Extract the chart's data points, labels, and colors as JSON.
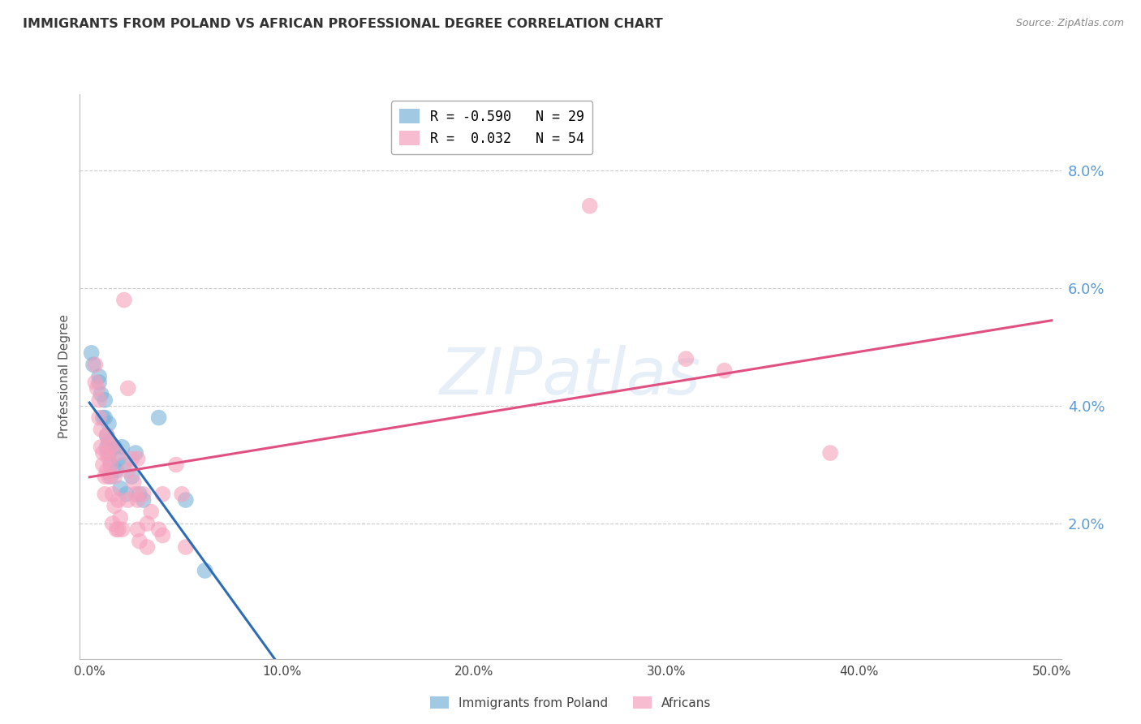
{
  "title": "IMMIGRANTS FROM POLAND VS AFRICAN PROFESSIONAL DEGREE CORRELATION CHART",
  "source": "Source: ZipAtlas.com",
  "ylabel": "Professional Degree",
  "right_ytick_labels": [
    "8.0%",
    "6.0%",
    "4.0%",
    "2.0%"
  ],
  "right_ytick_values": [
    0.08,
    0.06,
    0.04,
    0.02
  ],
  "bottom_xtick_labels": [
    "0.0%",
    "10.0%",
    "20.0%",
    "30.0%",
    "40.0%",
    "50.0%"
  ],
  "bottom_xtick_values": [
    0.0,
    0.1,
    0.2,
    0.3,
    0.4,
    0.5
  ],
  "xlim": [
    -0.005,
    0.505
  ],
  "ylim": [
    -0.003,
    0.093
  ],
  "legend_label_poland": "Immigrants from Poland",
  "legend_label_africans": "Africans",
  "poland_color": "#7ab3d9",
  "africa_color": "#f5a0bc",
  "watermark_text": "ZIPatlas",
  "background_color": "#ffffff",
  "grid_color": "#cccccc",
  "title_color": "#333333",
  "right_axis_label_color": "#5b9bd5",
  "poland_scatter": [
    [
      0.001,
      0.049
    ],
    [
      0.002,
      0.047
    ],
    [
      0.005,
      0.045
    ],
    [
      0.005,
      0.044
    ],
    [
      0.006,
      0.042
    ],
    [
      0.007,
      0.038
    ],
    [
      0.008,
      0.041
    ],
    [
      0.008,
      0.038
    ],
    [
      0.009,
      0.035
    ],
    [
      0.009,
      0.033
    ],
    [
      0.01,
      0.037
    ],
    [
      0.01,
      0.034
    ],
    [
      0.01,
      0.032
    ],
    [
      0.011,
      0.03
    ],
    [
      0.011,
      0.028
    ],
    [
      0.013,
      0.033
    ],
    [
      0.014,
      0.029
    ],
    [
      0.015,
      0.031
    ],
    [
      0.016,
      0.026
    ],
    [
      0.017,
      0.033
    ],
    [
      0.018,
      0.03
    ],
    [
      0.019,
      0.025
    ],
    [
      0.022,
      0.028
    ],
    [
      0.024,
      0.032
    ],
    [
      0.026,
      0.025
    ],
    [
      0.028,
      0.024
    ],
    [
      0.036,
      0.038
    ],
    [
      0.05,
      0.024
    ],
    [
      0.06,
      0.012
    ]
  ],
  "africa_scatter": [
    [
      0.003,
      0.047
    ],
    [
      0.003,
      0.044
    ],
    [
      0.004,
      0.043
    ],
    [
      0.005,
      0.041
    ],
    [
      0.005,
      0.038
    ],
    [
      0.006,
      0.036
    ],
    [
      0.006,
      0.033
    ],
    [
      0.007,
      0.032
    ],
    [
      0.007,
      0.03
    ],
    [
      0.008,
      0.028
    ],
    [
      0.008,
      0.025
    ],
    [
      0.009,
      0.035
    ],
    [
      0.009,
      0.032
    ],
    [
      0.009,
      0.029
    ],
    [
      0.01,
      0.034
    ],
    [
      0.01,
      0.031
    ],
    [
      0.01,
      0.028
    ],
    [
      0.011,
      0.033
    ],
    [
      0.011,
      0.03
    ],
    [
      0.012,
      0.025
    ],
    [
      0.012,
      0.02
    ],
    [
      0.013,
      0.028
    ],
    [
      0.013,
      0.023
    ],
    [
      0.014,
      0.019
    ],
    [
      0.015,
      0.032
    ],
    [
      0.015,
      0.024
    ],
    [
      0.015,
      0.019
    ],
    [
      0.016,
      0.021
    ],
    [
      0.017,
      0.019
    ],
    [
      0.018,
      0.058
    ],
    [
      0.02,
      0.043
    ],
    [
      0.02,
      0.029
    ],
    [
      0.02,
      0.024
    ],
    [
      0.022,
      0.031
    ],
    [
      0.023,
      0.027
    ],
    [
      0.024,
      0.025
    ],
    [
      0.025,
      0.031
    ],
    [
      0.025,
      0.024
    ],
    [
      0.025,
      0.019
    ],
    [
      0.026,
      0.017
    ],
    [
      0.028,
      0.025
    ],
    [
      0.03,
      0.02
    ],
    [
      0.03,
      0.016
    ],
    [
      0.032,
      0.022
    ],
    [
      0.036,
      0.019
    ],
    [
      0.038,
      0.025
    ],
    [
      0.038,
      0.018
    ],
    [
      0.045,
      0.03
    ],
    [
      0.048,
      0.025
    ],
    [
      0.05,
      0.016
    ],
    [
      0.26,
      0.074
    ],
    [
      0.31,
      0.048
    ],
    [
      0.33,
      0.046
    ],
    [
      0.385,
      0.032
    ]
  ],
  "trendline_poland_color": "#2e6db5",
  "trendline_africa_color": "#e05080"
}
